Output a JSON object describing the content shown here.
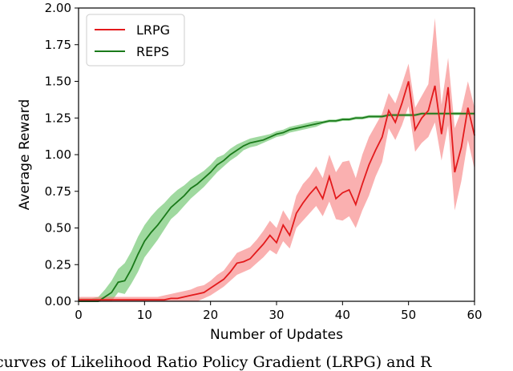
{
  "chart_data": {
    "type": "line",
    "xlabel": "Number of Updates",
    "ylabel": "Average Reward",
    "xlim": [
      0,
      60
    ],
    "ylim": [
      0,
      2.0
    ],
    "xticks": [
      0,
      10,
      20,
      30,
      40,
      50,
      60
    ],
    "yticks": [
      0.0,
      0.25,
      0.5,
      0.75,
      1.0,
      1.25,
      1.5,
      1.75,
      2.0
    ],
    "xtick_labels": [
      "0",
      "10",
      "20",
      "30",
      "40",
      "50",
      "60"
    ],
    "ytick_labels": [
      "0.00",
      "0.25",
      "0.50",
      "0.75",
      "1.00",
      "1.25",
      "1.50",
      "1.75",
      "2.00"
    ],
    "grid": false,
    "legend_position": "top-left",
    "series": [
      {
        "name": "LRPG",
        "color": "#e31a1c",
        "band_color": "#f77b7b",
        "x": [
          0,
          1,
          2,
          3,
          4,
          5,
          6,
          7,
          8,
          9,
          10,
          11,
          12,
          13,
          14,
          15,
          16,
          17,
          18,
          19,
          20,
          21,
          22,
          23,
          24,
          25,
          26,
          27,
          28,
          29,
          30,
          31,
          32,
          33,
          34,
          35,
          36,
          37,
          38,
          39,
          40,
          41,
          42,
          43,
          44,
          45,
          46,
          47,
          48,
          49,
          50,
          51,
          52,
          53,
          54,
          55,
          56,
          57,
          58,
          59,
          60
        ],
        "y": [
          0.01,
          0.01,
          0.01,
          0.01,
          0.01,
          0.01,
          0.01,
          0.01,
          0.01,
          0.01,
          0.01,
          0.01,
          0.01,
          0.01,
          0.02,
          0.02,
          0.03,
          0.04,
          0.05,
          0.06,
          0.09,
          0.12,
          0.15,
          0.2,
          0.26,
          0.27,
          0.29,
          0.34,
          0.39,
          0.45,
          0.4,
          0.52,
          0.45,
          0.6,
          0.67,
          0.73,
          0.78,
          0.7,
          0.85,
          0.7,
          0.74,
          0.76,
          0.66,
          0.8,
          0.93,
          1.03,
          1.12,
          1.3,
          1.22,
          1.35,
          1.5,
          1.17,
          1.25,
          1.3,
          1.47,
          1.14,
          1.46,
          0.88,
          1.05,
          1.32,
          1.13
        ],
        "lower": [
          0.0,
          0.0,
          0.0,
          0.0,
          0.0,
          0.0,
          0.0,
          0.0,
          0.0,
          0.0,
          0.0,
          0.0,
          0.0,
          0.0,
          0.0,
          0.0,
          0.0,
          0.0,
          0.0,
          0.02,
          0.04,
          0.07,
          0.1,
          0.14,
          0.18,
          0.2,
          0.22,
          0.26,
          0.3,
          0.35,
          0.32,
          0.41,
          0.36,
          0.5,
          0.55,
          0.6,
          0.65,
          0.58,
          0.68,
          0.56,
          0.55,
          0.58,
          0.5,
          0.62,
          0.72,
          0.85,
          0.95,
          1.18,
          1.1,
          1.2,
          1.33,
          1.02,
          1.08,
          1.12,
          1.22,
          0.96,
          1.2,
          0.62,
          0.82,
          1.1,
          0.9
        ],
        "upper": [
          0.03,
          0.03,
          0.03,
          0.03,
          0.03,
          0.03,
          0.03,
          0.03,
          0.03,
          0.03,
          0.03,
          0.03,
          0.03,
          0.04,
          0.05,
          0.06,
          0.07,
          0.08,
          0.1,
          0.11,
          0.14,
          0.18,
          0.21,
          0.27,
          0.33,
          0.35,
          0.37,
          0.42,
          0.48,
          0.55,
          0.5,
          0.62,
          0.55,
          0.72,
          0.8,
          0.85,
          0.92,
          0.84,
          1.0,
          0.88,
          0.95,
          0.96,
          0.84,
          1.0,
          1.12,
          1.2,
          1.28,
          1.42,
          1.35,
          1.48,
          1.62,
          1.32,
          1.4,
          1.48,
          1.93,
          1.34,
          1.66,
          1.18,
          1.3,
          1.5,
          1.32
        ]
      },
      {
        "name": "REPS",
        "color": "#1a7a1a",
        "band_color": "#5fbf5f",
        "x": [
          0,
          1,
          2,
          3,
          4,
          5,
          6,
          7,
          8,
          9,
          10,
          11,
          12,
          13,
          14,
          15,
          16,
          17,
          18,
          19,
          20,
          21,
          22,
          23,
          24,
          25,
          26,
          27,
          28,
          29,
          30,
          31,
          32,
          33,
          34,
          35,
          36,
          37,
          38,
          39,
          40,
          41,
          42,
          43,
          44,
          45,
          46,
          47,
          48,
          49,
          50,
          51,
          52,
          53,
          54,
          55,
          56,
          57,
          58,
          59,
          60
        ],
        "y": [
          0.0,
          0.0,
          0.0,
          0.0,
          0.03,
          0.06,
          0.13,
          0.14,
          0.22,
          0.32,
          0.41,
          0.47,
          0.52,
          0.58,
          0.64,
          0.68,
          0.72,
          0.77,
          0.8,
          0.84,
          0.88,
          0.93,
          0.96,
          1.0,
          1.03,
          1.06,
          1.08,
          1.09,
          1.1,
          1.12,
          1.14,
          1.15,
          1.17,
          1.18,
          1.19,
          1.2,
          1.21,
          1.22,
          1.23,
          1.23,
          1.24,
          1.24,
          1.25,
          1.25,
          1.26,
          1.26,
          1.26,
          1.27,
          1.27,
          1.27,
          1.27,
          1.27,
          1.28,
          1.28,
          1.28,
          1.28,
          1.28,
          1.28,
          1.28,
          1.28,
          1.28
        ],
        "lower": [
          0.0,
          0.0,
          0.0,
          0.0,
          0.0,
          0.0,
          0.06,
          0.05,
          0.12,
          0.2,
          0.3,
          0.36,
          0.42,
          0.49,
          0.56,
          0.6,
          0.65,
          0.7,
          0.74,
          0.78,
          0.83,
          0.88,
          0.92,
          0.96,
          0.99,
          1.03,
          1.05,
          1.06,
          1.08,
          1.1,
          1.12,
          1.13,
          1.15,
          1.16,
          1.17,
          1.18,
          1.19,
          1.21,
          1.22,
          1.22,
          1.23,
          1.23,
          1.24,
          1.24,
          1.25,
          1.25,
          1.25,
          1.26,
          1.26,
          1.26,
          1.26,
          1.26,
          1.27,
          1.27,
          1.27,
          1.27,
          1.27,
          1.27,
          1.27,
          1.27,
          1.27
        ],
        "upper": [
          0.02,
          0.02,
          0.02,
          0.03,
          0.08,
          0.14,
          0.22,
          0.26,
          0.34,
          0.44,
          0.52,
          0.58,
          0.63,
          0.67,
          0.72,
          0.76,
          0.79,
          0.83,
          0.86,
          0.89,
          0.93,
          0.98,
          1.0,
          1.04,
          1.07,
          1.09,
          1.11,
          1.12,
          1.13,
          1.14,
          1.16,
          1.17,
          1.19,
          1.2,
          1.21,
          1.22,
          1.23,
          1.23,
          1.24,
          1.24,
          1.25,
          1.25,
          1.26,
          1.26,
          1.27,
          1.27,
          1.27,
          1.28,
          1.28,
          1.28,
          1.28,
          1.28,
          1.29,
          1.29,
          1.29,
          1.29,
          1.29,
          1.29,
          1.29,
          1.29,
          1.29
        ]
      }
    ]
  },
  "caption": "curves of Likelihood Ratio Policy Gradient (LRPG) and R"
}
